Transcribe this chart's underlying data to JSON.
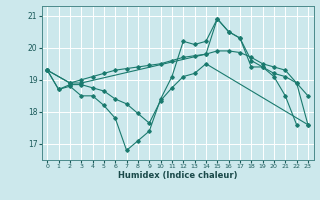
{
  "xlabel": "Humidex (Indice chaleur)",
  "bg_color": "#cce8ec",
  "grid_color": "#ffffff",
  "line_color": "#1a7a6e",
  "xlim": [
    -0.5,
    23.5
  ],
  "ylim": [
    16.5,
    21.3
  ],
  "yticks": [
    17,
    18,
    19,
    20,
    21
  ],
  "xticks": [
    0,
    1,
    2,
    3,
    4,
    5,
    6,
    7,
    8,
    9,
    10,
    11,
    12,
    13,
    14,
    15,
    16,
    17,
    18,
    19,
    20,
    21,
    22,
    23
  ],
  "series": [
    {
      "x": [
        0,
        1,
        2,
        3,
        4,
        5,
        6,
        7,
        8,
        9,
        10,
        11,
        12,
        13,
        14,
        15,
        16,
        17,
        18,
        19,
        20,
        21,
        22
      ],
      "y": [
        19.3,
        18.7,
        18.8,
        18.5,
        18.5,
        18.2,
        17.8,
        16.8,
        17.1,
        17.4,
        18.4,
        19.1,
        20.2,
        20.1,
        20.2,
        20.9,
        20.5,
        20.3,
        19.4,
        19.4,
        19.1,
        18.5,
        17.6
      ]
    },
    {
      "x": [
        0,
        2,
        3,
        4,
        5,
        6,
        7,
        8,
        9,
        10,
        11,
        12,
        13,
        14,
        15,
        16,
        17,
        18,
        19,
        20,
        21,
        22,
        23
      ],
      "y": [
        19.3,
        18.9,
        19.0,
        19.1,
        19.2,
        19.3,
        19.35,
        19.4,
        19.45,
        19.5,
        19.6,
        19.7,
        19.75,
        19.8,
        19.9,
        19.9,
        19.85,
        19.7,
        19.5,
        19.4,
        19.3,
        18.9,
        18.5
      ]
    },
    {
      "x": [
        0,
        2,
        3,
        14,
        15,
        16,
        17,
        18,
        19,
        20,
        21,
        22,
        23
      ],
      "y": [
        19.3,
        18.9,
        18.9,
        19.8,
        20.9,
        20.5,
        20.3,
        19.6,
        19.4,
        19.2,
        19.1,
        18.9,
        17.6
      ]
    },
    {
      "x": [
        0,
        1,
        2,
        3,
        4,
        5,
        6,
        7,
        8,
        9,
        10,
        11,
        12,
        13,
        14,
        23
      ],
      "y": [
        19.3,
        18.7,
        18.85,
        18.85,
        18.75,
        18.65,
        18.4,
        18.25,
        17.95,
        17.65,
        18.35,
        18.75,
        19.1,
        19.2,
        19.5,
        17.6
      ]
    }
  ]
}
